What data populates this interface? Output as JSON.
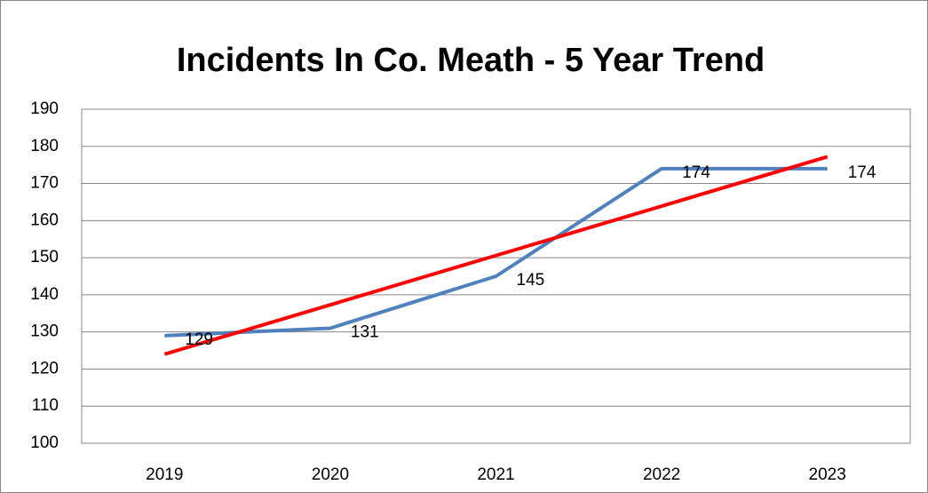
{
  "chart_data": {
    "type": "line",
    "title": "Incidents In Co. Meath - 5 Year Trend",
    "categories": [
      "2019",
      "2020",
      "2021",
      "2022",
      "2023"
    ],
    "series": [
      {
        "color": "#4f81bd",
        "values": [
          129,
          131,
          145,
          174,
          174
        ],
        "data_labels": true
      },
      {
        "color": "#ff0000",
        "values": [
          124.0,
          137.3,
          150.6,
          163.9,
          177.2
        ],
        "data_labels": false
      }
    ],
    "ylim": [
      100,
      190
    ],
    "yticks": [
      100,
      110,
      120,
      130,
      140,
      150,
      160,
      170,
      180,
      190
    ],
    "grid": true
  }
}
